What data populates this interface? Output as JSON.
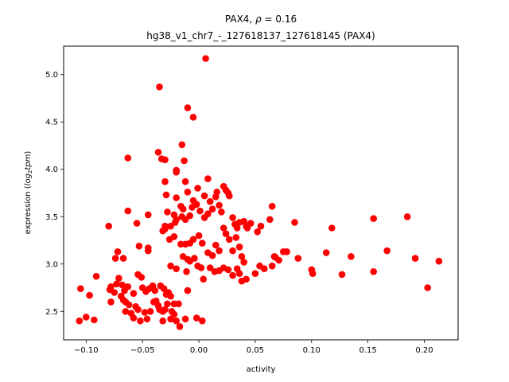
{
  "chart_data": {
    "type": "scatter",
    "title_line1_prefix": "PAX4, ",
    "title_rho_symbol": "ρ",
    "title_rho_value": " = 0.16",
    "title_line2": "hg38_v1_chr7_-_127618137_127618145 (PAX4)",
    "xlabel": "activity",
    "ylabel_prefix": "expression (",
    "ylabel_log": "log",
    "ylabel_sub": "2",
    "ylabel_tpm": "tpm",
    "ylabel_suffix": ")",
    "xlim": [
      -0.12,
      0.23
    ],
    "ylim": [
      2.2,
      5.3
    ],
    "xticks": [
      -0.1,
      -0.05,
      0.0,
      0.05,
      0.1,
      0.15,
      0.2
    ],
    "xtick_labels": [
      "−0.10",
      "−0.05",
      "0.00",
      "0.05",
      "0.10",
      "0.15",
      "0.20"
    ],
    "yticks": [
      2.5,
      3.0,
      3.5,
      4.0,
      4.5,
      5.0
    ],
    "ytick_labels": [
      "2.5",
      "3.0",
      "3.5",
      "4.0",
      "4.5",
      "5.0"
    ],
    "marker_color": "#ff0000",
    "grid": false,
    "points": [
      [
        0.006,
        5.17
      ],
      [
        -0.035,
        4.87
      ],
      [
        -0.01,
        4.65
      ],
      [
        -0.005,
        4.55
      ],
      [
        -0.063,
        4.12
      ],
      [
        -0.015,
        4.26
      ],
      [
        -0.036,
        4.18
      ],
      [
        -0.033,
        4.11
      ],
      [
        -0.03,
        4.1
      ],
      [
        -0.013,
        4.09
      ],
      [
        -0.02,
        3.97
      ],
      [
        -0.02,
        3.99
      ],
      [
        -0.001,
        3.8
      ],
      [
        -0.01,
        3.76
      ],
      [
        -0.029,
        3.73
      ],
      [
        -0.02,
        3.7
      ],
      [
        -0.03,
        3.87
      ],
      [
        -0.012,
        3.87
      ],
      [
        0.008,
        3.9
      ],
      [
        0.005,
        3.72
      ],
      [
        -0.005,
        3.67
      ],
      [
        -0.028,
        3.55
      ],
      [
        -0.022,
        3.52
      ],
      [
        -0.016,
        3.61
      ],
      [
        -0.014,
        3.58
      ],
      [
        -0.02,
        3.47
      ],
      [
        -0.025,
        3.4
      ],
      [
        -0.021,
        3.44
      ],
      [
        -0.03,
        3.37
      ],
      [
        -0.032,
        3.35
      ],
      [
        -0.015,
        3.5
      ],
      [
        -0.012,
        3.47
      ],
      [
        -0.008,
        3.51
      ],
      [
        -0.006,
        3.6
      ],
      [
        -0.002,
        3.63
      ],
      [
        0.001,
        3.56
      ],
      [
        0.005,
        3.49
      ],
      [
        0.008,
        3.53
      ],
      [
        0.01,
        3.66
      ],
      [
        0.012,
        3.58
      ],
      [
        0.015,
        3.71
      ],
      [
        0.016,
        3.76
      ],
      [
        0.018,
        3.62
      ],
      [
        0.02,
        3.55
      ],
      [
        0.022,
        3.82
      ],
      [
        0.024,
        3.78
      ],
      [
        0.026,
        3.75
      ],
      [
        0.027,
        3.72
      ],
      [
        0.03,
        3.49
      ],
      [
        0.032,
        3.42
      ],
      [
        0.034,
        3.38
      ],
      [
        0.036,
        3.44
      ],
      [
        0.04,
        3.45
      ],
      [
        0.042,
        3.4
      ],
      [
        0.046,
        3.43
      ],
      [
        0.055,
        3.4
      ],
      [
        0.063,
        3.47
      ],
      [
        0.065,
        3.61
      ],
      [
        0.085,
        3.44
      ],
      [
        0.155,
        3.48
      ],
      [
        0.185,
        3.5
      ],
      [
        0.118,
        3.38
      ],
      [
        -0.063,
        3.56
      ],
      [
        -0.055,
        3.43
      ],
      [
        -0.045,
        3.52
      ],
      [
        -0.08,
        3.4
      ],
      [
        -0.072,
        3.13
      ],
      [
        -0.074,
        3.06
      ],
      [
        -0.067,
        3.06
      ],
      [
        -0.053,
        3.19
      ],
      [
        -0.045,
        3.17
      ],
      [
        -0.045,
        3.14
      ],
      [
        -0.026,
        3.26
      ],
      [
        -0.022,
        3.29
      ],
      [
        -0.016,
        3.21
      ],
      [
        -0.012,
        3.21
      ],
      [
        -0.008,
        3.22
      ],
      [
        -0.005,
        3.26
      ],
      [
        0.0,
        3.3
      ],
      [
        0.003,
        3.22
      ],
      [
        0.008,
        3.12
      ],
      [
        0.012,
        3.09
      ],
      [
        0.015,
        3.2
      ],
      [
        0.018,
        3.14
      ],
      [
        0.022,
        3.38
      ],
      [
        0.024,
        3.32
      ],
      [
        0.027,
        3.26
      ],
      [
        0.03,
        3.14
      ],
      [
        0.033,
        3.28
      ],
      [
        0.036,
        3.18
      ],
      [
        0.038,
        3.08
      ],
      [
        0.04,
        3.02
      ],
      [
        0.043,
        3.38
      ],
      [
        0.052,
        3.34
      ],
      [
        0.068,
        3.07
      ],
      [
        0.071,
        3.04
      ],
      [
        0.075,
        3.13
      ],
      [
        0.078,
        3.13
      ],
      [
        0.088,
        3.06
      ],
      [
        0.113,
        3.12
      ],
      [
        0.135,
        3.08
      ],
      [
        0.167,
        3.14
      ],
      [
        0.192,
        3.06
      ],
      [
        0.213,
        3.03
      ],
      [
        -0.03,
        3.4
      ],
      [
        -0.014,
        3.08
      ],
      [
        -0.01,
        3.05
      ],
      [
        -0.008,
        3.03
      ],
      [
        -0.004,
        3.06
      ],
      [
        -0.001,
        2.98
      ],
      [
        0.004,
        2.84
      ],
      [
        0.01,
        2.96
      ],
      [
        0.014,
        2.92
      ],
      [
        0.018,
        2.93
      ],
      [
        0.022,
        2.96
      ],
      [
        0.026,
        2.94
      ],
      [
        0.03,
        2.88
      ],
      [
        0.034,
        2.95
      ],
      [
        0.036,
        2.9
      ],
      [
        0.038,
        2.82
      ],
      [
        0.042,
        2.84
      ],
      [
        0.05,
        2.9
      ],
      [
        0.054,
        2.98
      ],
      [
        0.058,
        2.95
      ],
      [
        0.065,
        2.98
      ],
      [
        0.067,
        3.08
      ],
      [
        0.1,
        2.94
      ],
      [
        0.101,
        2.9
      ],
      [
        0.127,
        2.89
      ],
      [
        0.155,
        2.92
      ],
      [
        0.203,
        2.75
      ],
      [
        -0.025,
        2.98
      ],
      [
        -0.02,
        2.95
      ],
      [
        -0.011,
        2.92
      ],
      [
        0.002,
        2.96
      ],
      [
        -0.091,
        2.87
      ],
      [
        -0.073,
        2.79
      ],
      [
        -0.071,
        2.85
      ],
      [
        -0.068,
        2.78
      ],
      [
        -0.066,
        2.72
      ],
      [
        -0.063,
        2.76
      ],
      [
        -0.058,
        2.69
      ],
      [
        -0.054,
        2.89
      ],
      [
        -0.051,
        2.86
      ],
      [
        -0.05,
        2.75
      ],
      [
        -0.047,
        2.71
      ],
      [
        -0.044,
        2.74
      ],
      [
        -0.041,
        2.77
      ],
      [
        -0.039,
        2.72
      ],
      [
        -0.034,
        2.77
      ],
      [
        -0.031,
        2.74
      ],
      [
        -0.029,
        2.68
      ],
      [
        -0.027,
        2.7
      ],
      [
        -0.025,
        2.66
      ],
      [
        -0.022,
        2.58
      ],
      [
        -0.018,
        2.58
      ],
      [
        -0.01,
        2.72
      ],
      [
        -0.105,
        2.74
      ],
      [
        -0.097,
        2.67
      ],
      [
        -0.079,
        2.73
      ],
      [
        -0.078,
        2.76
      ],
      [
        -0.075,
        2.7
      ],
      [
        -0.069,
        2.66
      ],
      [
        -0.067,
        2.62
      ],
      [
        -0.065,
        2.6
      ],
      [
        -0.062,
        2.57
      ],
      [
        -0.056,
        2.55
      ],
      [
        -0.054,
        2.52
      ],
      [
        -0.048,
        2.49
      ],
      [
        -0.043,
        2.5
      ],
      [
        -0.04,
        2.6
      ],
      [
        -0.038,
        2.61
      ],
      [
        -0.036,
        2.56
      ],
      [
        -0.032,
        2.5
      ],
      [
        -0.03,
        2.52
      ],
      [
        -0.028,
        2.58
      ],
      [
        -0.024,
        2.5
      ],
      [
        -0.022,
        2.47
      ],
      [
        -0.078,
        2.6
      ],
      [
        -0.065,
        2.5
      ],
      [
        -0.06,
        2.48
      ],
      [
        -0.058,
        2.43
      ],
      [
        -0.052,
        2.4
      ],
      [
        -0.046,
        2.42
      ],
      [
        -0.035,
        2.52
      ],
      [
        -0.032,
        2.4
      ],
      [
        -0.025,
        2.42
      ],
      [
        -0.02,
        2.4
      ],
      [
        -0.017,
        2.34
      ],
      [
        -0.012,
        2.42
      ],
      [
        -0.002,
        2.43
      ],
      [
        0.003,
        2.4
      ],
      [
        -0.106,
        2.4
      ],
      [
        -0.1,
        2.44
      ],
      [
        -0.093,
        2.41
      ]
    ]
  }
}
